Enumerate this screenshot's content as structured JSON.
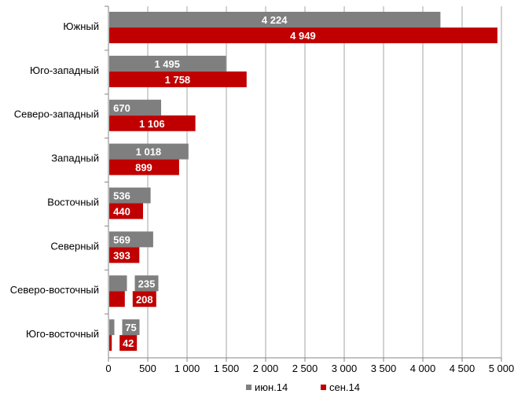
{
  "chart_data": {
    "type": "bar",
    "orientation": "horizontal",
    "categories": [
      "Южный",
      "Юго-западный",
      "Северо-западный",
      "Западный",
      "Восточный",
      "Северный",
      "Северо-восточный",
      "Юго-восточный"
    ],
    "series": [
      {
        "name": "июн.14",
        "color": "#7f7f7f",
        "values": [
          4224,
          1495,
          670,
          1018,
          536,
          569,
          235,
          75
        ],
        "labels": [
          "4 224",
          "1 495",
          "670",
          "1 018",
          "536",
          "569",
          "235",
          "75"
        ]
      },
      {
        "name": "сен.14",
        "color": "#c00000",
        "values": [
          4949,
          1758,
          1106,
          899,
          440,
          393,
          208,
          42
        ],
        "labels": [
          "4 949",
          "1 758",
          "1 106",
          "899",
          "440",
          "393",
          "208",
          "42"
        ]
      }
    ],
    "xlim": [
      0,
      5000
    ],
    "x_ticks": [
      0,
      500,
      1000,
      1500,
      2000,
      2500,
      3000,
      3500,
      4000,
      4500,
      5000
    ],
    "x_tick_labels": [
      "0",
      "500",
      "1 000",
      "1 500",
      "2 000",
      "2 500",
      "3 000",
      "3 500",
      "4 000",
      "4 500",
      "5 000"
    ],
    "grid": "vertical",
    "legend_position": "bottom",
    "title": "",
    "xlabel": "",
    "ylabel": ""
  }
}
